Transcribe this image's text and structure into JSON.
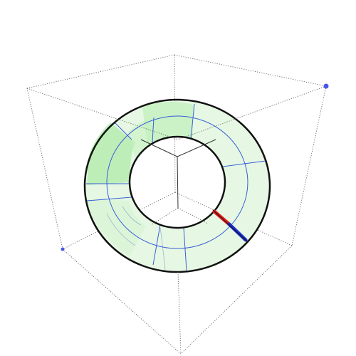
{
  "scene": {
    "type": "3d-plot-viewport",
    "colors": {
      "background": "#ffffff",
      "ring_fill": "#e6f8e3",
      "ring_shade": "#c3f0be",
      "ring_shade_strong": "#a8e8a1",
      "outline": "#111111",
      "mesh_lines": "#3a5fd8",
      "box_edges": "#555555",
      "corner_marker": "#4a56e6",
      "probe_red": "#e21a1a",
      "probe_blue": "#1a2fd0"
    },
    "objects": [
      "bounding-box",
      "annulus-surface",
      "mesh-grid",
      "probe-segment",
      "corner-markers"
    ]
  }
}
